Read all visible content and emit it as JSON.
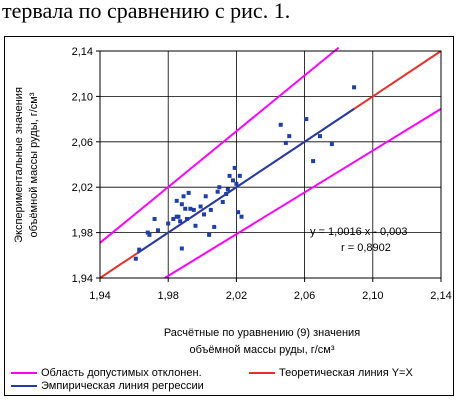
{
  "top_text": "тервала по сравнению с рис. 1.",
  "chart_data": {
    "type": "scatter",
    "title": "",
    "xlabel_line1": "Расчётные по уравнению (9) значения",
    "xlabel_line2": "объёмной массы руды, г/см³",
    "ylabel_line1": "Экспериментальные значения",
    "ylabel_line2": "объёмной массы руды, г/см³",
    "xlim": [
      1.94,
      2.14
    ],
    "ylim": [
      1.94,
      2.14
    ],
    "xticks": [
      "1,94",
      "1,98",
      "2,02",
      "2,06",
      "2,10",
      "2,14"
    ],
    "yticks": [
      "1,94",
      "1,98",
      "2,02",
      "2,06",
      "2,10",
      "2,14"
    ],
    "tick_values": [
      1.94,
      1.98,
      2.02,
      2.06,
      2.1,
      2.14
    ],
    "grid": true,
    "equation": "y = 1,0016 x - 0,003",
    "r_value": "r = 0,8902",
    "points": [
      [
        1.961,
        1.957
      ],
      [
        1.963,
        1.965
      ],
      [
        1.968,
        1.98
      ],
      [
        1.969,
        1.978
      ],
      [
        1.972,
        1.992
      ],
      [
        1.974,
        1.982
      ],
      [
        1.98,
        1.988
      ],
      [
        1.983,
        1.992
      ],
      [
        1.985,
        1.994
      ],
      [
        1.985,
        2.008
      ],
      [
        1.986,
        1.994
      ],
      [
        1.987,
        1.99
      ],
      [
        1.988,
        2.005
      ],
      [
        1.988,
        1.966
      ],
      [
        1.989,
        2.012
      ],
      [
        1.99,
        2.001
      ],
      [
        1.991,
        1.992
      ],
      [
        1.992,
        2.015
      ],
      [
        1.993,
        2.001
      ],
      [
        1.995,
        2.0
      ],
      [
        1.996,
        1.986
      ],
      [
        1.999,
        2.003
      ],
      [
        2.001,
        1.996
      ],
      [
        2.002,
        2.012
      ],
      [
        2.004,
        1.978
      ],
      [
        2.005,
        2.0
      ],
      [
        2.007,
        1.985
      ],
      [
        2.009,
        2.016
      ],
      [
        2.01,
        2.02
      ],
      [
        2.012,
        2.007
      ],
      [
        2.014,
        2.014
      ],
      [
        2.015,
        2.018
      ],
      [
        2.016,
        2.03
      ],
      [
        2.018,
        2.026
      ],
      [
        2.019,
        2.037
      ],
      [
        2.02,
        2.023
      ],
      [
        2.021,
        1.998
      ],
      [
        2.022,
        2.03
      ],
      [
        2.023,
        1.994
      ],
      [
        2.046,
        2.075
      ],
      [
        2.049,
        2.059
      ],
      [
        2.051,
        2.065
      ],
      [
        2.061,
        2.08
      ],
      [
        2.065,
        2.043
      ],
      [
        2.069,
        2.065
      ],
      [
        2.076,
        2.058
      ],
      [
        2.089,
        2.108
      ]
    ],
    "series": [
      {
        "name": "Область допустимых отклонен.",
        "color": "#ff00ff",
        "lines": [
          [
            [
              1.94,
              1.971
            ],
            [
              2.08,
              2.143
            ]
          ],
          [
            [
              1.978,
              1.94
            ],
            [
              2.14,
              2.089
            ]
          ]
        ]
      },
      {
        "name": "Теоретическая линия Y=X",
        "color": "#e8302a",
        "lines": [
          [
            [
              1.94,
              1.94
            ],
            [
              2.14,
              2.14
            ]
          ]
        ]
      },
      {
        "name": "Эмпирическая линия регрессии",
        "color": "#1f3ea8",
        "lines": [
          [
            [
              1.962,
              1.962
            ],
            [
              2.089,
              2.089
            ]
          ]
        ]
      }
    ],
    "point_color": "#1f3ea8"
  }
}
